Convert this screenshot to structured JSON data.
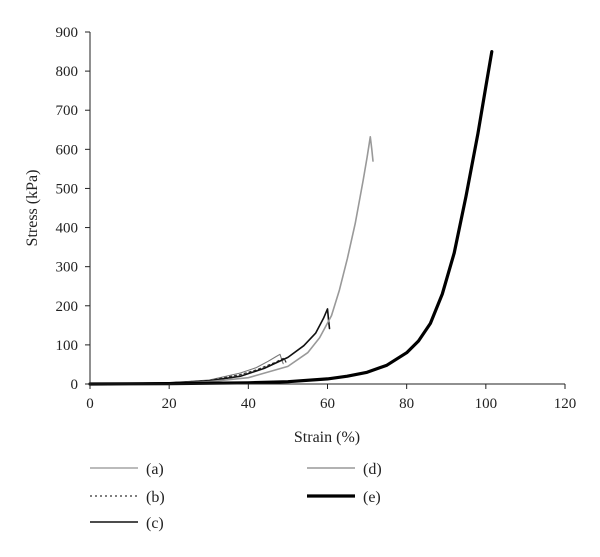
{
  "chart_data": {
    "type": "line",
    "xlabel": "Strain (%)",
    "ylabel": "Stress (kPa)",
    "xlim": [
      0,
      120
    ],
    "ylim": [
      0,
      900
    ],
    "x_ticks": [
      0,
      20,
      40,
      60,
      80,
      100,
      120
    ],
    "y_ticks": [
      0,
      100,
      200,
      300,
      400,
      500,
      600,
      700,
      800,
      900
    ],
    "grid": false,
    "legend_position": "bottom",
    "series": [
      {
        "name": "(a)",
        "color": "#777777",
        "style": "thin",
        "points": [
          [
            0,
            0
          ],
          [
            10,
            1
          ],
          [
            20,
            3
          ],
          [
            30,
            10
          ],
          [
            38,
            28
          ],
          [
            42,
            42
          ],
          [
            45,
            58
          ],
          [
            47,
            70
          ],
          [
            48,
            76
          ],
          [
            48.5,
            60
          ],
          [
            48.8,
            52
          ]
        ]
      },
      {
        "name": "(b)",
        "color": "#333333",
        "style": "dotted",
        "points": [
          [
            0,
            0
          ],
          [
            10,
            1
          ],
          [
            20,
            3
          ],
          [
            30,
            9
          ],
          [
            38,
            24
          ],
          [
            42,
            36
          ],
          [
            45,
            48
          ],
          [
            47,
            56
          ],
          [
            48,
            62
          ],
          [
            49,
            66
          ],
          [
            49.5,
            56
          ]
        ]
      },
      {
        "name": "(c)",
        "color": "#111111",
        "style": "solid",
        "points": [
          [
            0,
            0
          ],
          [
            10,
            1
          ],
          [
            20,
            3
          ],
          [
            30,
            8
          ],
          [
            38,
            20
          ],
          [
            44,
            40
          ],
          [
            50,
            68
          ],
          [
            54,
            98
          ],
          [
            57,
            130
          ],
          [
            59,
            168
          ],
          [
            60,
            192
          ],
          [
            60.3,
            160
          ],
          [
            60.5,
            142
          ]
        ]
      },
      {
        "name": "(d)",
        "color": "#999999",
        "style": "solid",
        "points": [
          [
            0,
            0
          ],
          [
            10,
            1
          ],
          [
            20,
            2
          ],
          [
            30,
            6
          ],
          [
            40,
            16
          ],
          [
            50,
            45
          ],
          [
            55,
            80
          ],
          [
            58,
            118
          ],
          [
            61,
            175
          ],
          [
            63,
            240
          ],
          [
            65,
            320
          ],
          [
            67,
            410
          ],
          [
            69,
            520
          ],
          [
            70,
            580
          ],
          [
            70.8,
            632
          ],
          [
            71.2,
            600
          ],
          [
            71.5,
            570
          ]
        ]
      },
      {
        "name": "(e)",
        "color": "#000000",
        "style": "thick",
        "points": [
          [
            0,
            0
          ],
          [
            20,
            1
          ],
          [
            40,
            3
          ],
          [
            50,
            6
          ],
          [
            60,
            13
          ],
          [
            65,
            20
          ],
          [
            70,
            30
          ],
          [
            75,
            48
          ],
          [
            80,
            80
          ],
          [
            83,
            110
          ],
          [
            86,
            155
          ],
          [
            89,
            230
          ],
          [
            92,
            335
          ],
          [
            95,
            480
          ],
          [
            98,
            640
          ],
          [
            100,
            760
          ],
          [
            101.5,
            850
          ]
        ]
      }
    ]
  }
}
